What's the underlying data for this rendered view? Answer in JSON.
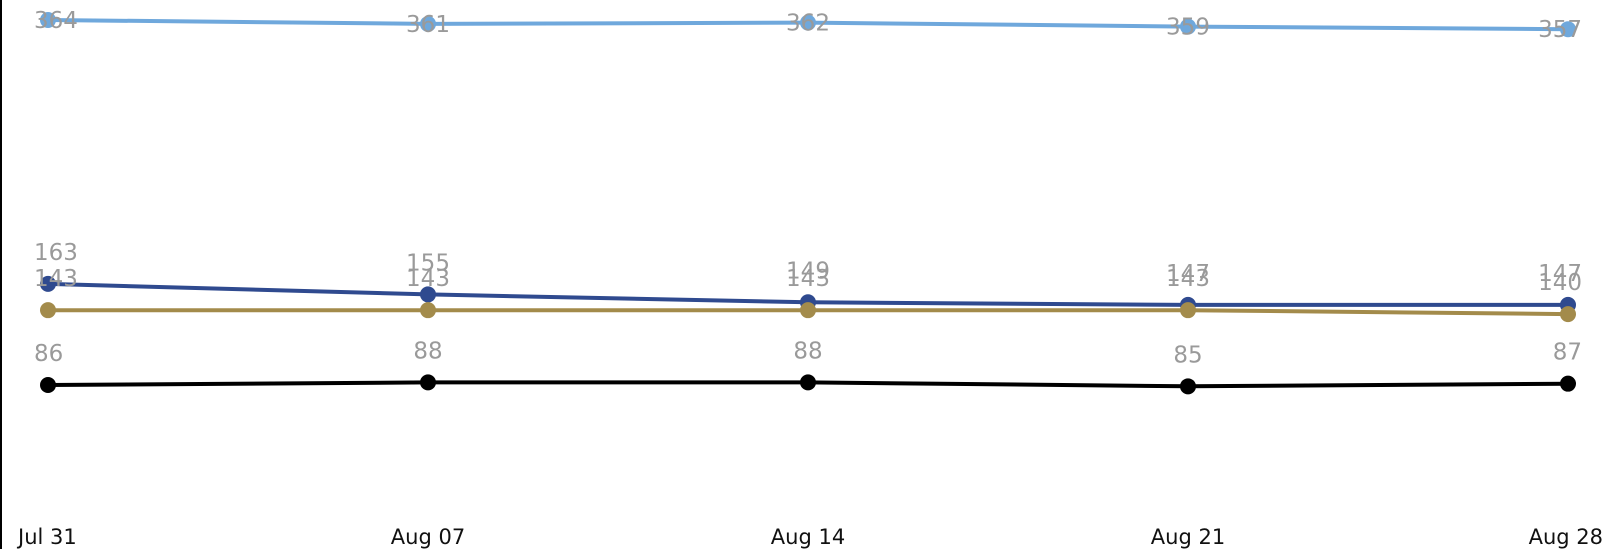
{
  "chart_data": {
    "type": "line",
    "title": "",
    "xlabel": "",
    "ylabel": "",
    "x": [
      "Jul 31",
      "Aug 07",
      "Aug 14",
      "Aug 21",
      "Aug 28"
    ],
    "ylim": [
      0,
      370
    ],
    "grid": false,
    "legend": "none",
    "series": [
      {
        "color": "#6fa8dc",
        "values": [
          364,
          361,
          362,
          359,
          357
        ]
      },
      {
        "color": "#2f4a8f",
        "values": [
          163,
          155,
          149,
          147,
          147
        ]
      },
      {
        "color": "#a38b4b",
        "values": [
          143,
          143,
          143,
          143,
          140
        ]
      },
      {
        "color": "#000000",
        "values": [
          86,
          88,
          88,
          85,
          87
        ]
      }
    ]
  }
}
